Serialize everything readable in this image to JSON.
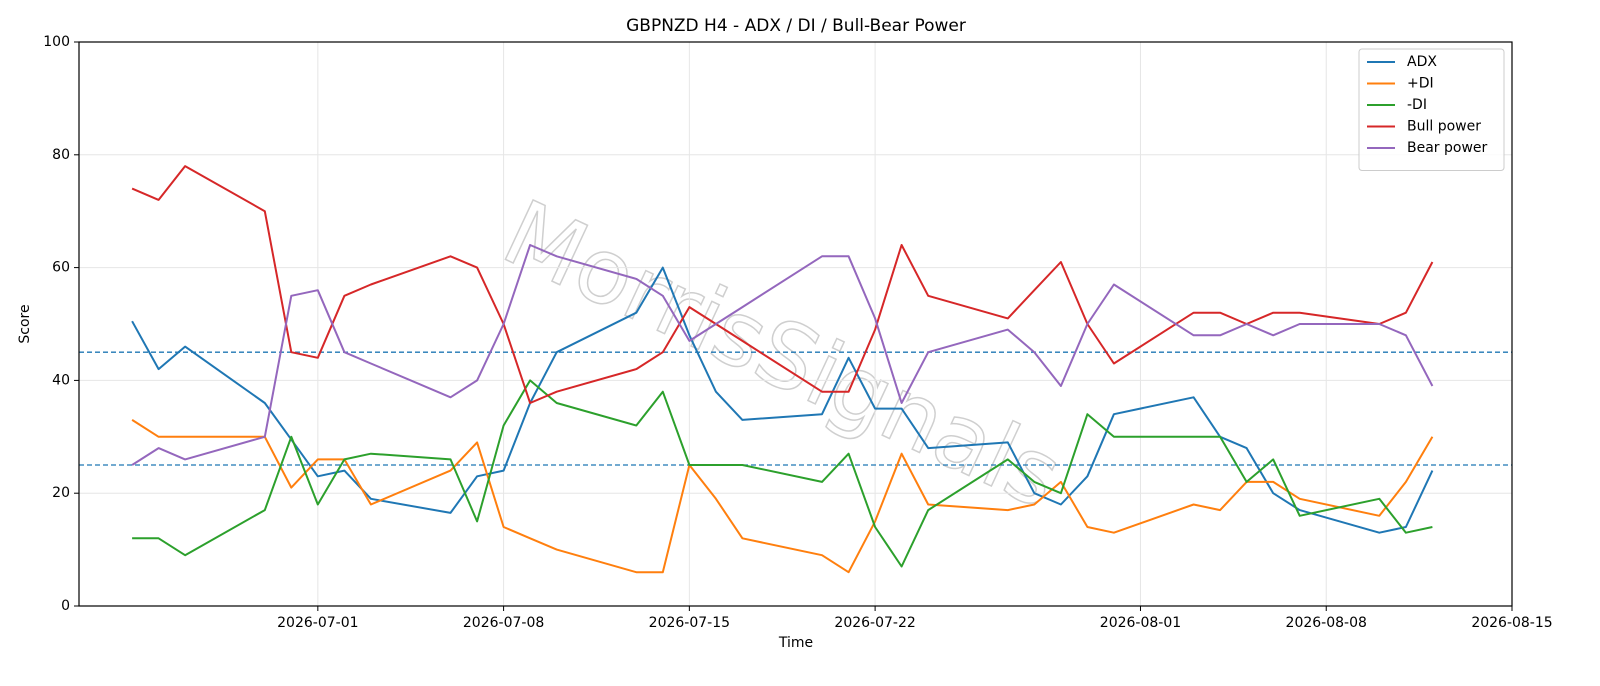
{
  "chart_data": {
    "type": "line",
    "title": "GBPNZD H4 - ADX / DI / Bull-Bear Power",
    "xlabel": "Time",
    "ylabel": "Score",
    "watermark": "MorrisSignals",
    "x": [
      "2026-06-24",
      "2026-06-25",
      "2026-06-26",
      "2026-06-29",
      "2026-06-30",
      "2026-07-01",
      "2026-07-02",
      "2026-07-03",
      "2026-07-06",
      "2026-07-07",
      "2026-07-08",
      "2026-07-09",
      "2026-07-10",
      "2026-07-13",
      "2026-07-14",
      "2026-07-15",
      "2026-07-16",
      "2026-07-17",
      "2026-07-20",
      "2026-07-21",
      "2026-07-22",
      "2026-07-23",
      "2026-07-24",
      "2026-07-27",
      "2026-07-28",
      "2026-07-29",
      "2026-07-30",
      "2026-07-31",
      "2026-08-03",
      "2026-08-04",
      "2026-08-05",
      "2026-08-06",
      "2026-08-07",
      "2026-08-10",
      "2026-08-11",
      "2026-08-12"
    ],
    "series": [
      {
        "name": "ADX",
        "color": "#1f77b4",
        "values": [
          50.5,
          42,
          46,
          36,
          29.5,
          23,
          24,
          19,
          16.5,
          23,
          24,
          36,
          45,
          52,
          60,
          48,
          38,
          33,
          34,
          44,
          35,
          35,
          28,
          29,
          20,
          18,
          23,
          34,
          37,
          30,
          28,
          20,
          17,
          13,
          14,
          24
        ]
      },
      {
        "name": "+DI",
        "color": "#ff7f0e",
        "values": [
          33,
          30,
          30,
          30,
          21,
          26,
          26,
          18,
          24,
          29,
          14,
          12,
          10,
          6,
          6,
          25,
          19,
          12,
          9,
          6,
          15,
          27,
          18,
          17,
          18,
          22,
          14,
          13,
          18,
          17,
          22,
          22,
          19,
          16,
          22,
          30
        ]
      },
      {
        "name": "-DI",
        "color": "#2ca02c",
        "values": [
          12,
          12,
          9,
          17,
          30,
          18,
          26,
          27,
          26,
          15,
          32,
          40,
          36,
          32,
          38,
          25,
          25,
          25,
          22,
          27,
          14,
          7,
          17,
          26,
          22,
          20,
          34,
          30,
          30,
          30,
          22,
          26,
          16,
          19,
          13,
          14
        ]
      },
      {
        "name": "Bull power",
        "color": "#d62728",
        "values": [
          74,
          72,
          78,
          70,
          45,
          44,
          55,
          57,
          62,
          60,
          50,
          36,
          38,
          42,
          45,
          53,
          50,
          47,
          38,
          38,
          49,
          64,
          55,
          51,
          56,
          61,
          50,
          43,
          52,
          52,
          50,
          52,
          52,
          50,
          52,
          61
        ]
      },
      {
        "name": "Bear power",
        "color": "#9467bd",
        "values": [
          25,
          28,
          26,
          30,
          55,
          56,
          45,
          43,
          37,
          40,
          50,
          64,
          62,
          58,
          55,
          47,
          50,
          53,
          62,
          62,
          51,
          36,
          45,
          49,
          45,
          39,
          50,
          57,
          48,
          48,
          50,
          48,
          50,
          50,
          48,
          39
        ]
      }
    ],
    "reference_lines": [
      25,
      45
    ],
    "reference_color": "#1f77b4",
    "xlim": [
      "2026-06-22",
      "2026-08-15"
    ],
    "xticks": [
      "2026-07-01",
      "2026-07-08",
      "2026-07-15",
      "2026-07-22",
      "2026-08-01",
      "2026-08-08",
      "2026-08-15"
    ],
    "ylim": [
      0,
      100
    ],
    "yticks": [
      0,
      20,
      40,
      60,
      80,
      100
    ],
    "grid": true,
    "legend": "upper right"
  }
}
